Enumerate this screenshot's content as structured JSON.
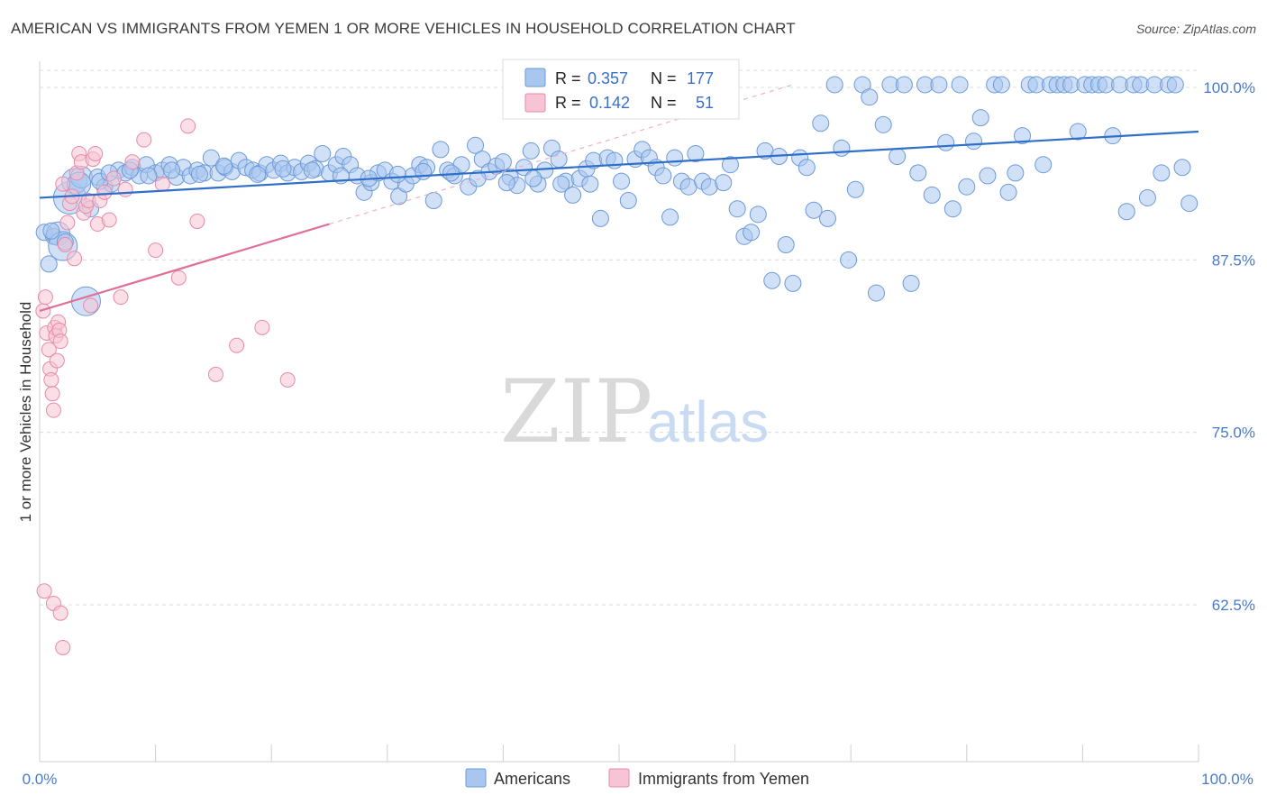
{
  "title": "AMERICAN VS IMMIGRANTS FROM YEMEN 1 OR MORE VEHICLES IN HOUSEHOLD CORRELATION CHART",
  "source": "Source: ZipAtlas.com",
  "watermark": {
    "zip": "ZIP",
    "atlas": "atlas"
  },
  "colors": {
    "blue_fill": "#a9c6ee",
    "blue_stroke": "#6d9ad8",
    "blue_line": "#2f6fc9",
    "pink_fill": "#f6c4d4",
    "pink_stroke": "#e88aa8",
    "pink_line": "#e06f9a",
    "tick_text": "#4a7ac8",
    "grid": "#dcdcdc"
  },
  "stats": {
    "r_label": "R =",
    "n_label": "N =",
    "blue": {
      "r": "0.357",
      "n": "177"
    },
    "pink": {
      "r": "0.142",
      "n": "51"
    }
  },
  "legend": {
    "americans": "Americans",
    "yemen": "Immigrants from Yemen"
  },
  "chart_data": {
    "type": "scatter",
    "title": "AMERICAN VS IMMIGRANTS FROM YEMEN 1 OR MORE VEHICLES IN HOUSEHOLD CORRELATION CHART",
    "xlabel": "",
    "ylabel": "1 or more Vehicles in Household",
    "xlim": [
      0,
      100
    ],
    "ylim": [
      50,
      102.5
    ],
    "x_tick_labels": [
      "0.0%",
      "100.0%"
    ],
    "y_ticks": [
      62.5,
      75.0,
      87.5,
      100.0
    ],
    "y_tick_labels": [
      "62.5%",
      "75.0%",
      "87.5%",
      "100.0%"
    ],
    "grid": "horizontal dashed",
    "legend_position": "bottom-center",
    "series": [
      {
        "name": "Americans",
        "color": "#a9c6ee",
        "trend": {
          "x": [
            0,
            100
          ],
          "y": [
            92.0,
            96.8
          ]
        },
        "points": [
          [
            0.4,
            89.5
          ],
          [
            0.8,
            87.2
          ],
          [
            1.2,
            89.2
          ],
          [
            1.6,
            89.4
          ],
          [
            2.0,
            88.5
          ],
          [
            2.6,
            92.0
          ],
          [
            3.0,
            93.2
          ],
          [
            3.6,
            93.5
          ],
          [
            4.0,
            84.5
          ],
          [
            4.4,
            91.2
          ],
          [
            5.0,
            93.5
          ],
          [
            5.6,
            92.8
          ],
          [
            6.2,
            93.0
          ],
          [
            6.8,
            94.0
          ],
          [
            7.4,
            93.8
          ],
          [
            8.0,
            94.2
          ],
          [
            8.6,
            93.6
          ],
          [
            9.2,
            94.4
          ],
          [
            10.0,
            93.8
          ],
          [
            10.6,
            94.0
          ],
          [
            11.2,
            94.4
          ],
          [
            11.8,
            93.5
          ],
          [
            12.4,
            94.2
          ],
          [
            13.0,
            93.6
          ],
          [
            13.6,
            94.0
          ],
          [
            14.2,
            93.8
          ],
          [
            14.8,
            94.9
          ],
          [
            15.4,
            93.8
          ],
          [
            16.0,
            94.2
          ],
          [
            16.6,
            93.9
          ],
          [
            17.2,
            94.7
          ],
          [
            17.8,
            94.2
          ],
          [
            18.4,
            94.0
          ],
          [
            19.0,
            93.8
          ],
          [
            19.6,
            94.4
          ],
          [
            20.2,
            94.0
          ],
          [
            20.8,
            94.5
          ],
          [
            21.4,
            93.8
          ],
          [
            22.0,
            94.2
          ],
          [
            22.6,
            93.9
          ],
          [
            23.2,
            94.5
          ],
          [
            23.8,
            94.1
          ],
          [
            24.4,
            95.2
          ],
          [
            25.0,
            93.8
          ],
          [
            25.6,
            94.4
          ],
          [
            26.2,
            95.0
          ],
          [
            26.8,
            94.4
          ],
          [
            27.4,
            93.6
          ],
          [
            28.0,
            92.4
          ],
          [
            28.6,
            93.1
          ],
          [
            29.2,
            93.8
          ],
          [
            29.8,
            94.0
          ],
          [
            30.4,
            93.2
          ],
          [
            31.0,
            92.1
          ],
          [
            31.6,
            93.0
          ],
          [
            32.2,
            93.6
          ],
          [
            32.8,
            94.4
          ],
          [
            33.4,
            94.2
          ],
          [
            34.0,
            91.8
          ],
          [
            34.6,
            95.5
          ],
          [
            35.2,
            94.0
          ],
          [
            35.8,
            93.6
          ],
          [
            36.4,
            94.4
          ],
          [
            37.0,
            92.8
          ],
          [
            37.6,
            95.8
          ],
          [
            38.2,
            94.8
          ],
          [
            38.8,
            93.9
          ],
          [
            39.4,
            94.3
          ],
          [
            40.0,
            94.6
          ],
          [
            40.6,
            93.5
          ],
          [
            41.2,
            92.9
          ],
          [
            41.8,
            94.2
          ],
          [
            42.4,
            95.4
          ],
          [
            43.0,
            93.0
          ],
          [
            43.6,
            94.0
          ],
          [
            44.2,
            95.6
          ],
          [
            44.8,
            94.8
          ],
          [
            45.4,
            93.2
          ],
          [
            46.0,
            92.2
          ],
          [
            46.6,
            93.4
          ],
          [
            47.2,
            94.1
          ],
          [
            47.8,
            94.7
          ],
          [
            48.4,
            90.5
          ],
          [
            49.0,
            94.9
          ],
          [
            49.6,
            94.7
          ],
          [
            50.2,
            93.2
          ],
          [
            50.8,
            91.8
          ],
          [
            51.4,
            94.8
          ],
          [
            52.0,
            95.5
          ],
          [
            52.6,
            94.9
          ],
          [
            53.2,
            94.2
          ],
          [
            53.8,
            93.6
          ],
          [
            54.4,
            90.6
          ],
          [
            54.8,
            94.9
          ],
          [
            55.4,
            93.2
          ],
          [
            56.0,
            92.8
          ],
          [
            56.6,
            95.2
          ],
          [
            57.2,
            93.2
          ],
          [
            57.8,
            92.8
          ],
          [
            58.4,
            98.6
          ],
          [
            59.0,
            93.1
          ],
          [
            59.6,
            94.4
          ],
          [
            60.2,
            91.2
          ],
          [
            60.8,
            89.2
          ],
          [
            61.4,
            89.5
          ],
          [
            62.0,
            90.8
          ],
          [
            62.6,
            95.4
          ],
          [
            63.2,
            86.0
          ],
          [
            63.8,
            95.0
          ],
          [
            64.4,
            88.6
          ],
          [
            65.0,
            85.8
          ],
          [
            65.6,
            94.9
          ],
          [
            66.2,
            94.2
          ],
          [
            66.8,
            91.1
          ],
          [
            67.4,
            97.4
          ],
          [
            68.0,
            90.5
          ],
          [
            68.6,
            100.2
          ],
          [
            69.2,
            95.6
          ],
          [
            69.8,
            87.5
          ],
          [
            70.4,
            92.6
          ],
          [
            71.0,
            100.2
          ],
          [
            71.6,
            99.3
          ],
          [
            72.2,
            85.1
          ],
          [
            72.8,
            97.3
          ],
          [
            73.4,
            100.2
          ],
          [
            74.0,
            95.0
          ],
          [
            74.6,
            100.2
          ],
          [
            75.2,
            85.8
          ],
          [
            75.8,
            93.8
          ],
          [
            76.4,
            100.2
          ],
          [
            77.0,
            92.2
          ],
          [
            77.6,
            100.2
          ],
          [
            78.2,
            96.0
          ],
          [
            78.8,
            91.2
          ],
          [
            79.4,
            100.2
          ],
          [
            80.0,
            92.8
          ],
          [
            80.6,
            96.1
          ],
          [
            81.2,
            97.8
          ],
          [
            81.8,
            93.6
          ],
          [
            82.4,
            100.2
          ],
          [
            83.0,
            100.2
          ],
          [
            83.6,
            92.4
          ],
          [
            84.2,
            93.8
          ],
          [
            84.8,
            96.5
          ],
          [
            85.4,
            100.2
          ],
          [
            86.0,
            100.2
          ],
          [
            86.6,
            94.4
          ],
          [
            87.2,
            100.2
          ],
          [
            87.8,
            100.2
          ],
          [
            88.4,
            100.2
          ],
          [
            89.0,
            100.2
          ],
          [
            89.6,
            96.8
          ],
          [
            90.2,
            100.2
          ],
          [
            90.8,
            100.2
          ],
          [
            91.4,
            100.2
          ],
          [
            92.0,
            100.2
          ],
          [
            92.6,
            96.5
          ],
          [
            93.2,
            100.2
          ],
          [
            93.8,
            91.0
          ],
          [
            94.4,
            100.2
          ],
          [
            95.0,
            100.2
          ],
          [
            95.6,
            92.0
          ],
          [
            96.2,
            100.2
          ],
          [
            96.8,
            93.8
          ],
          [
            97.4,
            100.2
          ],
          [
            98.0,
            100.2
          ],
          [
            98.6,
            94.2
          ],
          [
            99.2,
            91.6
          ],
          [
            1.0,
            89.6
          ],
          [
            3.4,
            93.0
          ],
          [
            5.2,
            93.2
          ],
          [
            7.8,
            94.0
          ],
          [
            9.4,
            93.6
          ],
          [
            11.4,
            94.0
          ],
          [
            13.8,
            93.7
          ],
          [
            15.9,
            94.3
          ],
          [
            18.8,
            93.7
          ],
          [
            21.0,
            94.1
          ],
          [
            23.5,
            94.0
          ],
          [
            26.0,
            93.6
          ],
          [
            28.4,
            93.4
          ],
          [
            30.9,
            93.7
          ],
          [
            33.1,
            93.9
          ],
          [
            35.5,
            93.8
          ],
          [
            37.8,
            93.4
          ],
          [
            40.3,
            93.1
          ],
          [
            42.6,
            93.4
          ],
          [
            45.0,
            93.0
          ],
          [
            47.5,
            93.0
          ],
          [
            2.2,
            88.8
          ],
          [
            6.0,
            93.8
          ]
        ]
      },
      {
        "name": "Immigrants from Yemen",
        "color": "#f6c4d4",
        "trend_solid": {
          "x": [
            0,
            25
          ],
          "y": [
            83.8,
            90.1
          ]
        },
        "trend_dashed": {
          "x": [
            25,
            65
          ],
          "y": [
            90.1,
            100.2
          ]
        },
        "points": [
          [
            0.3,
            83.8
          ],
          [
            0.5,
            84.8
          ],
          [
            0.6,
            82.2
          ],
          [
            0.8,
            81.0
          ],
          [
            0.9,
            79.6
          ],
          [
            1.0,
            78.8
          ],
          [
            1.1,
            77.8
          ],
          [
            1.2,
            76.6
          ],
          [
            1.3,
            82.6
          ],
          [
            1.4,
            82.0
          ],
          [
            1.5,
            80.2
          ],
          [
            1.6,
            83.0
          ],
          [
            1.7,
            82.4
          ],
          [
            1.8,
            81.6
          ],
          [
            2.0,
            93.0
          ],
          [
            2.2,
            88.6
          ],
          [
            2.4,
            90.2
          ],
          [
            2.6,
            91.6
          ],
          [
            2.8,
            92.1
          ],
          [
            3.0,
            87.6
          ],
          [
            3.2,
            93.8
          ],
          [
            3.4,
            95.2
          ],
          [
            3.6,
            94.6
          ],
          [
            3.8,
            90.9
          ],
          [
            4.0,
            91.4
          ],
          [
            4.2,
            91.8
          ],
          [
            4.4,
            84.2
          ],
          [
            4.6,
            94.8
          ],
          [
            4.8,
            95.2
          ],
          [
            5.0,
            90.1
          ],
          [
            5.2,
            91.8
          ],
          [
            5.6,
            92.4
          ],
          [
            6.0,
            90.4
          ],
          [
            6.4,
            93.4
          ],
          [
            7.0,
            84.8
          ],
          [
            7.4,
            92.6
          ],
          [
            8.0,
            94.6
          ],
          [
            9.0,
            96.2
          ],
          [
            10.0,
            88.2
          ],
          [
            10.6,
            93.0
          ],
          [
            12.0,
            86.2
          ],
          [
            12.8,
            97.2
          ],
          [
            13.6,
            90.3
          ],
          [
            15.2,
            79.2
          ],
          [
            17.0,
            81.3
          ],
          [
            19.2,
            82.6
          ],
          [
            21.4,
            78.8
          ],
          [
            0.4,
            63.5
          ],
          [
            1.2,
            62.6
          ],
          [
            1.8,
            61.9
          ],
          [
            2.0,
            59.4
          ]
        ]
      }
    ]
  }
}
